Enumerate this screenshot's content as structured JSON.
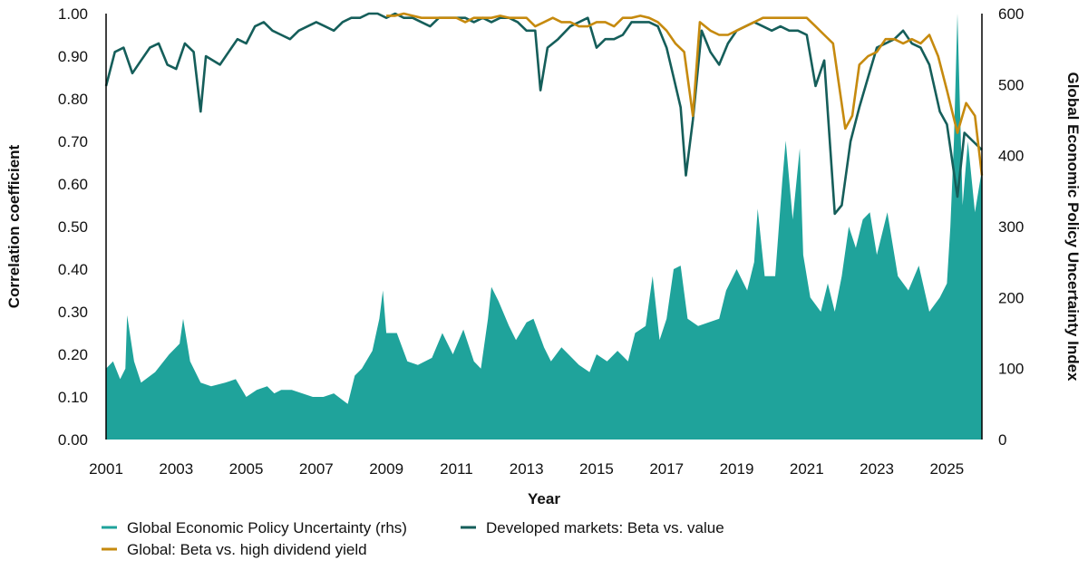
{
  "chart_data": {
    "type": "line",
    "title": "",
    "xlabel": "Year",
    "ylabel": "Correlation coefficient",
    "y2label": "Global Economic Policy Uncertainty Index",
    "xlim": [
      2001,
      2026
    ],
    "ylim": [
      0,
      1
    ],
    "y2lim": [
      0,
      600
    ],
    "xticks": [
      "2001",
      "2003",
      "2005",
      "2007",
      "2009",
      "2011",
      "2013",
      "2015",
      "2017",
      "2019",
      "2021",
      "2023",
      "2025"
    ],
    "yticks": [
      "0.00",
      "0.10",
      "0.20",
      "0.30",
      "0.40",
      "0.50",
      "0.60",
      "0.70",
      "0.80",
      "0.90",
      "1.00"
    ],
    "y2ticks": [
      "0",
      "100",
      "200",
      "300",
      "400",
      "500",
      "600"
    ],
    "grid": false,
    "legend_placement": "bottom",
    "series": [
      {
        "name": "Global Economic Policy Uncertainty (rhs)",
        "kind": "area",
        "axis": "right",
        "color": "#1fa39b",
        "points": [
          [
            2001.0,
            100
          ],
          [
            2001.2,
            110
          ],
          [
            2001.4,
            85
          ],
          [
            2001.55,
            100
          ],
          [
            2001.6,
            175
          ],
          [
            2001.8,
            110
          ],
          [
            2002.0,
            80
          ],
          [
            2002.4,
            95
          ],
          [
            2002.8,
            120
          ],
          [
            2003.1,
            135
          ],
          [
            2003.2,
            170
          ],
          [
            2003.4,
            110
          ],
          [
            2003.7,
            80
          ],
          [
            2004.0,
            75
          ],
          [
            2004.4,
            80
          ],
          [
            2004.7,
            85
          ],
          [
            2005.0,
            60
          ],
          [
            2005.3,
            70
          ],
          [
            2005.6,
            75
          ],
          [
            2005.8,
            65
          ],
          [
            2006.0,
            70
          ],
          [
            2006.3,
            70
          ],
          [
            2006.6,
            65
          ],
          [
            2006.9,
            60
          ],
          [
            2007.2,
            60
          ],
          [
            2007.5,
            65
          ],
          [
            2007.9,
            50
          ],
          [
            2008.1,
            90
          ],
          [
            2008.3,
            100
          ],
          [
            2008.6,
            125
          ],
          [
            2008.8,
            170
          ],
          [
            2008.9,
            210
          ],
          [
            2009.0,
            150
          ],
          [
            2009.3,
            150
          ],
          [
            2009.6,
            110
          ],
          [
            2009.9,
            105
          ],
          [
            2010.3,
            115
          ],
          [
            2010.6,
            150
          ],
          [
            2010.9,
            120
          ],
          [
            2011.2,
            155
          ],
          [
            2011.5,
            110
          ],
          [
            2011.7,
            100
          ],
          [
            2011.9,
            170
          ],
          [
            2012.0,
            215
          ],
          [
            2012.2,
            195
          ],
          [
            2012.5,
            160
          ],
          [
            2012.7,
            140
          ],
          [
            2013.0,
            165
          ],
          [
            2013.2,
            170
          ],
          [
            2013.5,
            130
          ],
          [
            2013.7,
            110
          ],
          [
            2014.0,
            130
          ],
          [
            2014.2,
            120
          ],
          [
            2014.5,
            105
          ],
          [
            2014.8,
            95
          ],
          [
            2015.0,
            120
          ],
          [
            2015.3,
            110
          ],
          [
            2015.6,
            125
          ],
          [
            2015.9,
            110
          ],
          [
            2016.1,
            150
          ],
          [
            2016.4,
            160
          ],
          [
            2016.6,
            230
          ],
          [
            2016.8,
            140
          ],
          [
            2017.0,
            170
          ],
          [
            2017.2,
            240
          ],
          [
            2017.4,
            245
          ],
          [
            2017.6,
            170
          ],
          [
            2017.9,
            160
          ],
          [
            2018.2,
            165
          ],
          [
            2018.5,
            170
          ],
          [
            2018.7,
            210
          ],
          [
            2019.0,
            240
          ],
          [
            2019.3,
            210
          ],
          [
            2019.5,
            250
          ],
          [
            2019.6,
            325
          ],
          [
            2019.8,
            230
          ],
          [
            2020.1,
            230
          ],
          [
            2020.3,
            364
          ],
          [
            2020.4,
            421
          ],
          [
            2020.6,
            310
          ],
          [
            2020.8,
            410
          ],
          [
            2020.9,
            260
          ],
          [
            2021.1,
            200
          ],
          [
            2021.4,
            180
          ],
          [
            2021.6,
            220
          ],
          [
            2021.8,
            180
          ],
          [
            2022.0,
            230
          ],
          [
            2022.2,
            300
          ],
          [
            2022.4,
            270
          ],
          [
            2022.6,
            310
          ],
          [
            2022.8,
            320
          ],
          [
            2023.0,
            260
          ],
          [
            2023.3,
            320
          ],
          [
            2023.6,
            230
          ],
          [
            2023.9,
            210
          ],
          [
            2024.2,
            245
          ],
          [
            2024.5,
            180
          ],
          [
            2024.8,
            200
          ],
          [
            2025.0,
            220
          ],
          [
            2025.1,
            300
          ],
          [
            2025.2,
            420
          ],
          [
            2025.3,
            600
          ],
          [
            2025.45,
            330
          ],
          [
            2025.6,
            420
          ],
          [
            2025.8,
            320
          ],
          [
            2026.0,
            380
          ]
        ]
      },
      {
        "name": "Developed markets: Beta vs. value",
        "kind": "line",
        "axis": "left",
        "color": "#155e5a",
        "points": [
          [
            2001.0,
            0.83
          ],
          [
            2001.25,
            0.91
          ],
          [
            2001.5,
            0.92
          ],
          [
            2001.75,
            0.86
          ],
          [
            2002.0,
            0.89
          ],
          [
            2002.25,
            0.92
          ],
          [
            2002.5,
            0.93
          ],
          [
            2002.75,
            0.88
          ],
          [
            2003.0,
            0.87
          ],
          [
            2003.25,
            0.93
          ],
          [
            2003.5,
            0.91
          ],
          [
            2003.7,
            0.77
          ],
          [
            2003.85,
            0.9
          ],
          [
            2004.25,
            0.88
          ],
          [
            2004.5,
            0.91
          ],
          [
            2004.75,
            0.94
          ],
          [
            2005.0,
            0.93
          ],
          [
            2005.25,
            0.97
          ],
          [
            2005.5,
            0.98
          ],
          [
            2005.75,
            0.96
          ],
          [
            2006.0,
            0.95
          ],
          [
            2006.25,
            0.94
          ],
          [
            2006.5,
            0.96
          ],
          [
            2006.75,
            0.97
          ],
          [
            2007.0,
            0.98
          ],
          [
            2007.25,
            0.97
          ],
          [
            2007.5,
            0.96
          ],
          [
            2007.75,
            0.98
          ],
          [
            2008.0,
            0.99
          ],
          [
            2008.25,
            0.99
          ],
          [
            2008.5,
            1.0
          ],
          [
            2008.75,
            1.0
          ],
          [
            2009.0,
            0.99
          ],
          [
            2009.25,
            1.0
          ],
          [
            2009.5,
            0.99
          ],
          [
            2009.75,
            0.99
          ],
          [
            2010.0,
            0.98
          ],
          [
            2010.25,
            0.97
          ],
          [
            2010.5,
            0.99
          ],
          [
            2010.75,
            0.99
          ],
          [
            2011.0,
            0.99
          ],
          [
            2011.25,
            0.99
          ],
          [
            2011.5,
            0.98
          ],
          [
            2011.75,
            0.99
          ],
          [
            2012.0,
            0.98
          ],
          [
            2012.25,
            0.99
          ],
          [
            2012.5,
            0.99
          ],
          [
            2012.75,
            0.98
          ],
          [
            2013.0,
            0.96
          ],
          [
            2013.25,
            0.96
          ],
          [
            2013.4,
            0.82
          ],
          [
            2013.6,
            0.92
          ],
          [
            2013.9,
            0.94
          ],
          [
            2014.25,
            0.97
          ],
          [
            2014.5,
            0.98
          ],
          [
            2014.75,
            0.99
          ],
          [
            2015.0,
            0.92
          ],
          [
            2015.25,
            0.94
          ],
          [
            2015.5,
            0.94
          ],
          [
            2015.75,
            0.95
          ],
          [
            2016.0,
            0.98
          ],
          [
            2016.25,
            0.98
          ],
          [
            2016.5,
            0.98
          ],
          [
            2016.75,
            0.97
          ],
          [
            2017.0,
            0.92
          ],
          [
            2017.2,
            0.85
          ],
          [
            2017.4,
            0.78
          ],
          [
            2017.55,
            0.62
          ],
          [
            2017.75,
            0.75
          ],
          [
            2018.0,
            0.96
          ],
          [
            2018.25,
            0.91
          ],
          [
            2018.5,
            0.88
          ],
          [
            2018.75,
            0.93
          ],
          [
            2019.0,
            0.96
          ],
          [
            2019.25,
            0.97
          ],
          [
            2019.5,
            0.98
          ],
          [
            2019.75,
            0.97
          ],
          [
            2020.0,
            0.96
          ],
          [
            2020.25,
            0.97
          ],
          [
            2020.5,
            0.96
          ],
          [
            2020.75,
            0.96
          ],
          [
            2021.0,
            0.95
          ],
          [
            2021.25,
            0.83
          ],
          [
            2021.5,
            0.89
          ],
          [
            2021.8,
            0.53
          ],
          [
            2022.0,
            0.55
          ],
          [
            2022.25,
            0.7
          ],
          [
            2022.5,
            0.78
          ],
          [
            2022.75,
            0.85
          ],
          [
            2023.0,
            0.92
          ],
          [
            2023.25,
            0.93
          ],
          [
            2023.5,
            0.94
          ],
          [
            2023.75,
            0.96
          ],
          [
            2024.0,
            0.93
          ],
          [
            2024.25,
            0.92
          ],
          [
            2024.5,
            0.88
          ],
          [
            2024.8,
            0.77
          ],
          [
            2025.0,
            0.74
          ],
          [
            2025.3,
            0.57
          ],
          [
            2025.5,
            0.72
          ],
          [
            2025.75,
            0.7
          ],
          [
            2026.0,
            0.68
          ]
        ]
      },
      {
        "name": "Global: Beta vs. high dividend yield",
        "kind": "line",
        "axis": "left",
        "color": "#c68a0e",
        "points": [
          [
            2009.0,
            0.995
          ],
          [
            2009.25,
            0.995
          ],
          [
            2009.5,
            1.0
          ],
          [
            2009.75,
            0.995
          ],
          [
            2010.0,
            0.99
          ],
          [
            2010.25,
            0.99
          ],
          [
            2010.5,
            0.99
          ],
          [
            2010.75,
            0.99
          ],
          [
            2011.0,
            0.99
          ],
          [
            2011.25,
            0.98
          ],
          [
            2011.5,
            0.99
          ],
          [
            2011.75,
            0.99
          ],
          [
            2012.0,
            0.99
          ],
          [
            2012.25,
            0.995
          ],
          [
            2012.5,
            0.99
          ],
          [
            2012.75,
            0.99
          ],
          [
            2013.0,
            0.99
          ],
          [
            2013.25,
            0.97
          ],
          [
            2013.5,
            0.98
          ],
          [
            2013.75,
            0.99
          ],
          [
            2014.0,
            0.98
          ],
          [
            2014.25,
            0.98
          ],
          [
            2014.5,
            0.97
          ],
          [
            2014.75,
            0.97
          ],
          [
            2015.0,
            0.98
          ],
          [
            2015.25,
            0.98
          ],
          [
            2015.5,
            0.97
          ],
          [
            2015.75,
            0.99
          ],
          [
            2016.0,
            0.99
          ],
          [
            2016.25,
            0.995
          ],
          [
            2016.5,
            0.99
          ],
          [
            2016.75,
            0.98
          ],
          [
            2017.0,
            0.96
          ],
          [
            2017.25,
            0.93
          ],
          [
            2017.5,
            0.91
          ],
          [
            2017.75,
            0.76
          ],
          [
            2017.95,
            0.98
          ],
          [
            2018.25,
            0.96
          ],
          [
            2018.5,
            0.95
          ],
          [
            2018.75,
            0.95
          ],
          [
            2019.0,
            0.96
          ],
          [
            2019.25,
            0.97
          ],
          [
            2019.5,
            0.98
          ],
          [
            2019.75,
            0.99
          ],
          [
            2020.0,
            0.99
          ],
          [
            2020.25,
            0.99
          ],
          [
            2020.5,
            0.99
          ],
          [
            2020.75,
            0.99
          ],
          [
            2021.0,
            0.99
          ],
          [
            2021.25,
            0.97
          ],
          [
            2021.5,
            0.95
          ],
          [
            2021.75,
            0.93
          ],
          [
            2022.1,
            0.73
          ],
          [
            2022.3,
            0.76
          ],
          [
            2022.5,
            0.88
          ],
          [
            2022.75,
            0.9
          ],
          [
            2023.0,
            0.91
          ],
          [
            2023.25,
            0.94
          ],
          [
            2023.5,
            0.94
          ],
          [
            2023.75,
            0.93
          ],
          [
            2024.0,
            0.94
          ],
          [
            2024.25,
            0.93
          ],
          [
            2024.5,
            0.95
          ],
          [
            2024.75,
            0.9
          ],
          [
            2025.0,
            0.82
          ],
          [
            2025.3,
            0.72
          ],
          [
            2025.55,
            0.79
          ],
          [
            2025.8,
            0.76
          ],
          [
            2026.0,
            0.62
          ]
        ]
      }
    ]
  }
}
